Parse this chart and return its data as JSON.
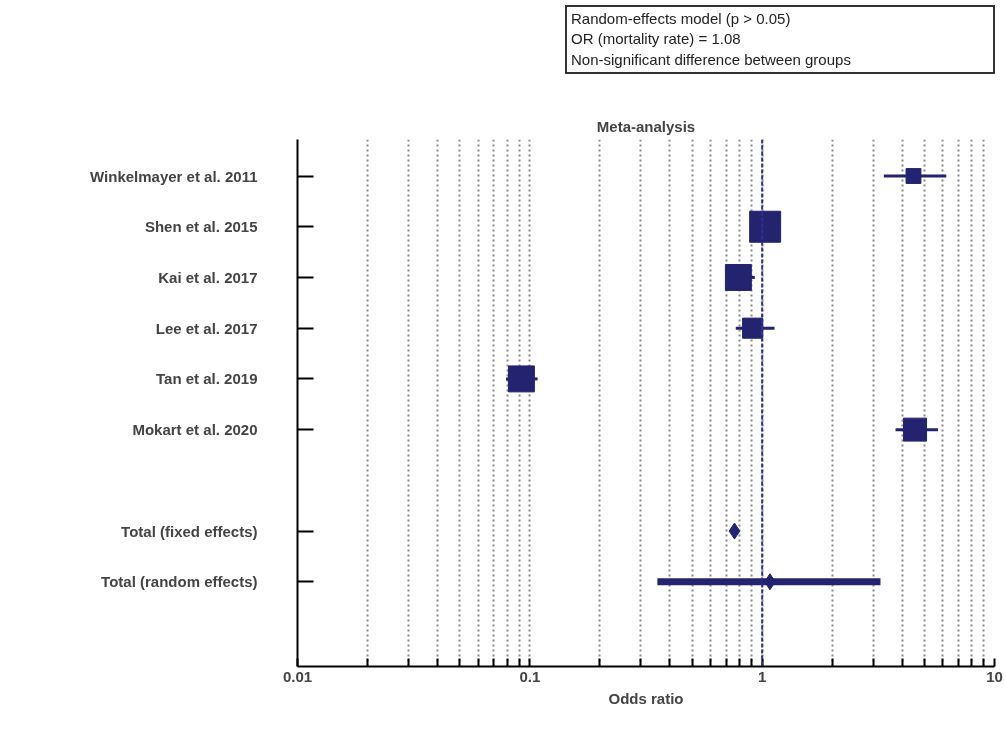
{
  "chart_data": {
    "type": "scatter",
    "orientation": "horizontal",
    "title": "Meta-analysis",
    "xlabel": "Odds ratio",
    "annotations": [
      "Random-effects model (p > 0.05)\nOR (mortality rate) = 1.08\nNon-significant difference between groups"
    ],
    "categories": [
      "Winkelmayer et al. 2011",
      "Shen et al. 2015",
      "Kai et al. 2017",
      "Lee et al. 2017",
      "Tan et al. 2019",
      "Mokart et al. 2020",
      null,
      "Total (fixed effects)",
      "Total (random effects)"
    ],
    "series": [
      {
        "type": "bubble",
        "marker": "square",
        "color": "#232370",
        "values": [
          4.48,
          1.03,
          0.79,
          0.91,
          0.092,
          4.55,
          null,
          null,
          null
        ],
        "sizes": [
          0.23,
          1,
          0.7,
          0.42,
          0.7,
          0.55,
          null,
          null,
          null
        ],
        "errors": [
          [
            3.34,
            6.2
          ],
          null,
          [
            0.7,
            0.93
          ],
          [
            0.77,
            1.13
          ],
          [
            0.079,
            0.108
          ],
          [
            3.75,
            5.71
          ],
          null,
          null,
          null
        ]
      },
      {
        "marker": "diamond",
        "color": "#232370",
        "values": [
          null,
          null,
          null,
          null,
          null,
          null,
          null,
          0.76,
          1.08
        ],
        "errors": [
          null,
          null,
          null,
          null,
          null,
          null,
          null,
          [
            0.74,
            0.78
          ],
          [
            0.354,
            3.23
          ]
        ]
      }
    ],
    "log": "x",
    "xlim": [
      0.01,
      10
    ],
    "xticks": [
      0.01,
      {
        "value": 0.02,
        "label": null
      },
      {
        "value": 0.03,
        "label": null
      },
      {
        "value": 0.04,
        "label": null
      },
      {
        "value": 0.05,
        "label": null
      },
      {
        "value": 0.06,
        "label": null
      },
      {
        "value": 0.07,
        "label": null
      },
      {
        "value": 0.08,
        "label": null
      },
      {
        "value": 0.09,
        "label": null
      },
      0.1,
      {
        "value": 0.2,
        "label": null
      },
      {
        "value": 0.3,
        "label": null
      },
      {
        "value": 0.4,
        "label": null
      },
      {
        "value": 0.5,
        "label": null
      },
      {
        "value": 0.6,
        "label": null
      },
      {
        "value": 0.7,
        "label": null
      },
      {
        "value": 0.8,
        "label": null
      },
      {
        "value": 0.9,
        "label": null
      },
      1,
      {
        "value": 2,
        "label": null
      },
      {
        "value": 3,
        "label": null
      },
      {
        "value": 4,
        "label": null
      },
      {
        "value": 5,
        "label": null
      },
      {
        "value": 6,
        "label": null
      },
      {
        "value": 7,
        "label": null
      },
      {
        "value": 8,
        "label": null
      },
      {
        "value": 9,
        "label": null
      },
      10
    ],
    "grid": "x",
    "ref_lines": [
      {
        "axis": "x",
        "value": 1,
        "color": "#2e3192",
        "line_style": "dashed"
      }
    ]
  }
}
